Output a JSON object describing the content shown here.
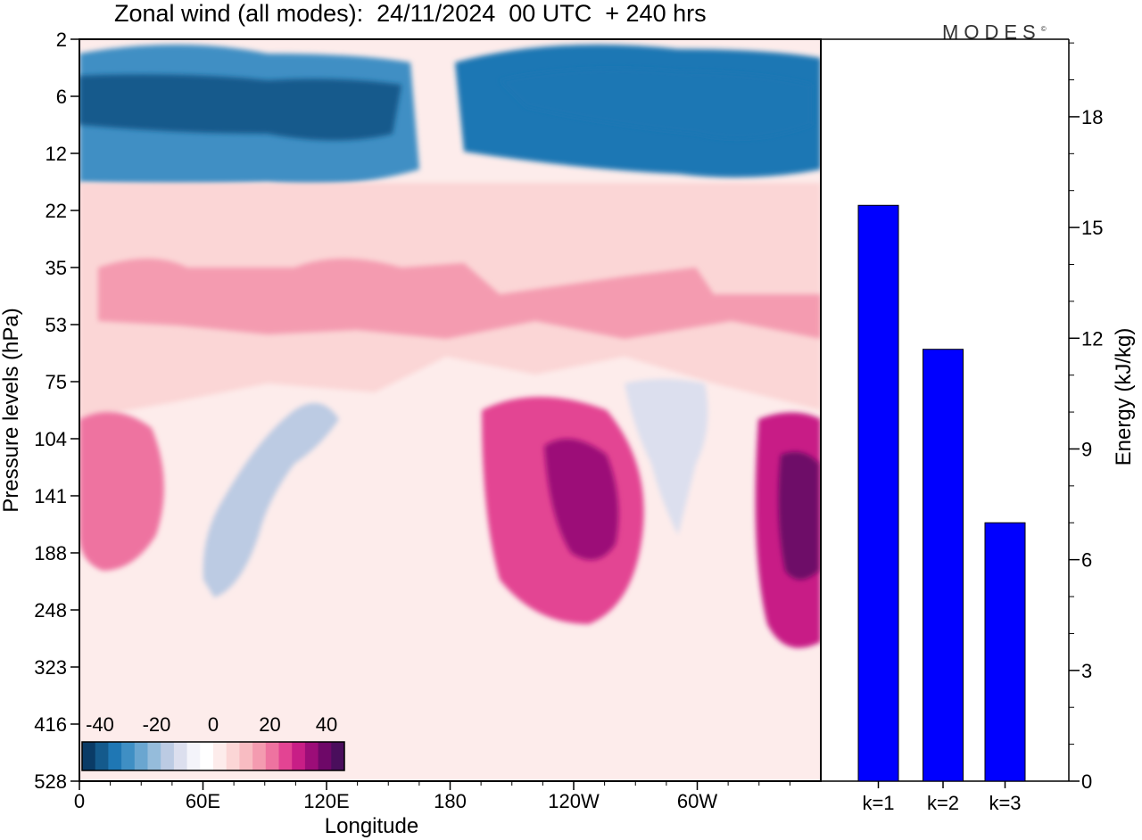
{
  "title": "Zonal wind (all modes):  24/11/2024  00 UTC  + 240 hrs",
  "brand": "MODES",
  "brand_mark": "©",
  "chart_data": [
    {
      "type": "heatmap",
      "xlabel": "Longitude",
      "ylabel": "Pressure levels (hPa)",
      "x_tick_labels": [
        "0",
        "60E",
        "120E",
        "180",
        "120W",
        "60W"
      ],
      "y_tick_labels": [
        "2",
        "6",
        "12",
        "22",
        "35",
        "53",
        "75",
        "104",
        "141",
        "188",
        "248",
        "323",
        "416",
        "528"
      ],
      "colorbar": {
        "tick_labels": [
          "-40",
          "-20",
          "0",
          "20",
          "40"
        ],
        "colors": [
          "#0a3b66",
          "#145a8c",
          "#1f77b4",
          "#3f8fc4",
          "#6aa6d0",
          "#95bcdb",
          "#bccbe3",
          "#dcdfee",
          "#f4f4fa",
          "#ffffff",
          "#fdeceb",
          "#fbd6d6",
          "#f8bcc2",
          "#f49bb0",
          "#ee73a0",
          "#e34493",
          "#c81e86",
          "#9c0d78",
          "#6e0868",
          "#4a0e5c"
        ]
      },
      "features": [
        {
          "name": "upper-easterlies-west",
          "value": -30
        },
        {
          "name": "upper-easterlies-east",
          "value": -35
        },
        {
          "name": "upper-core-1",
          "value": -38
        },
        {
          "name": "upper-core-2",
          "value": -35
        },
        {
          "name": "band-westerly",
          "value": 8
        },
        {
          "name": "band-westerly-patch",
          "value": 14
        },
        {
          "name": "jet-greenwich",
          "value": 22
        },
        {
          "name": "jet-pacific",
          "value": 25
        },
        {
          "name": "jet-pacific-core",
          "value": 32
        },
        {
          "name": "jet-atlantic",
          "value": 28
        },
        {
          "name": "jet-atlantic-core",
          "value": 38
        },
        {
          "name": "trough-60e",
          "value": -18
        },
        {
          "name": "trough-60w",
          "value": -12
        }
      ]
    },
    {
      "type": "bar",
      "categories": [
        "k=1",
        "k=2",
        "k=3"
      ],
      "values": [
        15.6,
        11.7,
        7.0
      ],
      "ylabel": "Energy (kJ/kg)",
      "ylim": [
        0,
        20.1
      ],
      "y_ticks": [
        0,
        3,
        6,
        9,
        12,
        15,
        18
      ],
      "bar_color": "#0000ff"
    }
  ]
}
